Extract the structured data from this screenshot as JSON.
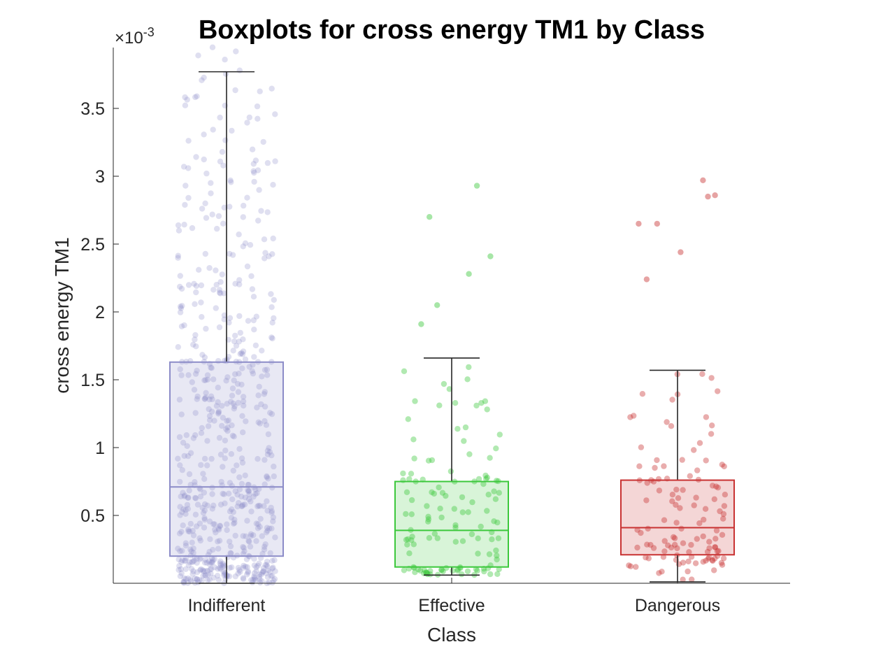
{
  "chart_data": {
    "type": "boxplot",
    "title": "Boxplots for cross energy TM1 by Class",
    "xlabel": "Class",
    "ylabel": "cross energy TM1",
    "y_exponent_base": "×10",
    "y_exponent_power": "-3",
    "ylim": [
      0.0,
      3.95
    ],
    "yticks": [
      0.5,
      1,
      1.5,
      2,
      2.5,
      3,
      3.5
    ],
    "ytick_labels": [
      "0.5",
      "1",
      "1.5",
      "2",
      "2.5",
      "3",
      "3.5"
    ],
    "grid": false,
    "categories": [
      "Indifferent",
      "Effective",
      "Dangerous"
    ],
    "colors": [
      "#8C8CC8",
      "#3CC83C",
      "#C83232"
    ],
    "whisker_color": "#262626",
    "boxes": [
      {
        "category": "Indifferent",
        "whisker_low": 0.0,
        "q1": 0.2,
        "median": 0.71,
        "q3": 1.63,
        "whisker_high": 3.77,
        "n_points": 650,
        "max_value": 3.95
      },
      {
        "category": "Effective",
        "whisker_low": 0.06,
        "q1": 0.12,
        "median": 0.39,
        "q3": 0.75,
        "whisker_high": 1.66,
        "n_points": 130,
        "max_value": 2.93,
        "outliers": [
          2.93,
          2.7,
          2.41,
          2.28,
          2.05,
          1.91
        ]
      },
      {
        "category": "Dangerous",
        "whisker_low": 0.01,
        "q1": 0.21,
        "median": 0.41,
        "q3": 0.76,
        "whisker_high": 1.57,
        "n_points": 120,
        "max_value": 2.97,
        "outliers": [
          2.97,
          2.86,
          2.85,
          2.65,
          2.65,
          2.44,
          2.24
        ]
      }
    ]
  }
}
